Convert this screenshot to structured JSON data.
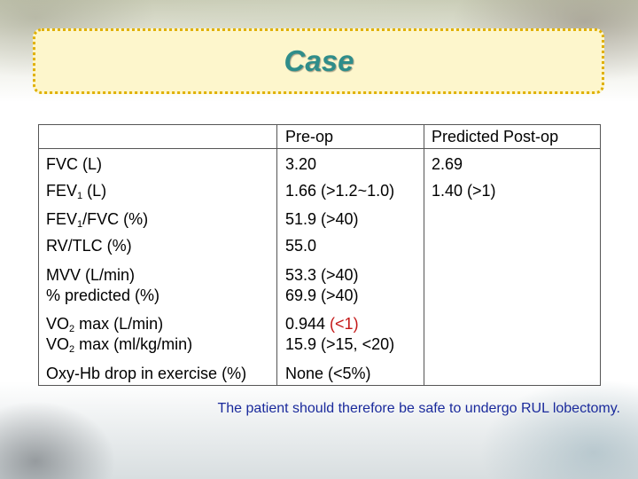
{
  "slide": {
    "title": "Case",
    "conclusion": "The patient should therefore be safe to undergo RUL lobectomy."
  },
  "table": {
    "headers": [
      "",
      "Pre-op",
      "Predicted Post-op"
    ],
    "rows": [
      {
        "param": "FVC (L)",
        "preop": "3.20",
        "postop": "2.69"
      },
      {
        "param_parts": [
          "FEV",
          "1",
          " (L)"
        ],
        "preop": "1.66 (>1.2~1.0)",
        "postop": "1.40 (>1)"
      },
      {
        "param_parts": [
          "FEV",
          "1",
          "/FVC (%)"
        ],
        "preop": "51.9 (>40)",
        "postop": ""
      },
      {
        "param": "RV/TLC (%)",
        "preop": "55.0",
        "postop": ""
      },
      {
        "param_lines": [
          "MVV (L/min)",
          "% predicted (%)"
        ],
        "preop_lines": [
          "53.3 (>40)",
          "69.9 (>40)"
        ],
        "postop": ""
      },
      {
        "param_line1_parts": [
          "VO",
          "2",
          " max (L/min)"
        ],
        "param_line2_parts": [
          "VO",
          "2",
          " max (ml/kg/min)"
        ],
        "preop_line1_parts": [
          "0.944 ",
          "(<1)"
        ],
        "preop_line2": "15.9 (>15, <20)",
        "postop": ""
      },
      {
        "param": "Oxy-Hb drop in exercise (%)",
        "preop": "None (<5%)",
        "postop": ""
      }
    ]
  },
  "colors": {
    "title": "#2f8d8a",
    "title_box_fill": "#fdf6cc",
    "title_box_border": "#e0b000",
    "conclusion": "#1a2a9c",
    "warning": "#c41818"
  }
}
